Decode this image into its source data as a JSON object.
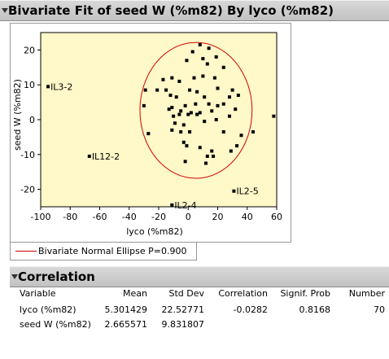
{
  "fit_report": {
    "title": "Bivariate Fit of seed W  (%m82) By lyco (%m82)"
  },
  "chart_data": {
    "type": "scatter",
    "xlabel": "lyco (%m82)",
    "ylabel": "seed W  (%m82)",
    "xlim": [
      -100,
      60
    ],
    "ylim": [
      -25,
      25
    ],
    "xticks": [
      -100,
      -80,
      -60,
      -40,
      -20,
      0,
      20,
      40,
      60
    ],
    "yticks": [
      -20,
      -10,
      0,
      10,
      20
    ],
    "grid": false,
    "background_color": "#fff8c8",
    "point_color": "#000000",
    "ellipse": {
      "center": [
        5.3,
        2.67
      ],
      "rx": 38,
      "ry": 19.5,
      "color": "#d40000"
    },
    "points": [
      [
        -95,
        9.5
      ],
      [
        -67,
        -10.5
      ],
      [
        -11,
        -24.5
      ],
      [
        31,
        -20.5
      ],
      [
        58,
        1
      ],
      [
        8,
        21.5
      ],
      [
        14,
        20.5
      ],
      [
        3,
        19.5
      ],
      [
        19,
        18
      ],
      [
        10,
        17.5
      ],
      [
        -1,
        17
      ],
      [
        13,
        16
      ],
      [
        24,
        15
      ],
      [
        -17,
        11.5
      ],
      [
        -11,
        12
      ],
      [
        -6,
        11
      ],
      [
        4,
        12
      ],
      [
        10,
        12.5
      ],
      [
        18,
        12
      ],
      [
        -29,
        8.5
      ],
      [
        -21,
        8.5
      ],
      [
        -15,
        8.5
      ],
      [
        1,
        8.5
      ],
      [
        6,
        8
      ],
      [
        20,
        9
      ],
      [
        30,
        8.5
      ],
      [
        -12,
        7
      ],
      [
        -8,
        6.5
      ],
      [
        11,
        6.5
      ],
      [
        28,
        6.5
      ],
      [
        34,
        7
      ],
      [
        -30,
        4
      ],
      [
        -2,
        4
      ],
      [
        5,
        4.5
      ],
      [
        14,
        4.5
      ],
      [
        20,
        4
      ],
      [
        24,
        4.5
      ],
      [
        -13,
        3
      ],
      [
        -11,
        3.5
      ],
      [
        -5,
        2.5
      ],
      [
        2,
        2
      ],
      [
        8,
        2
      ],
      [
        16,
        2.5
      ],
      [
        32,
        3
      ],
      [
        -10,
        1
      ],
      [
        -6,
        1.5
      ],
      [
        0,
        1.5
      ],
      [
        6,
        1.5
      ],
      [
        28,
        1
      ],
      [
        -9,
        -1
      ],
      [
        -3,
        -1.5
      ],
      [
        11,
        -0.5
      ],
      [
        19,
        0
      ],
      [
        -11,
        -3
      ],
      [
        -5,
        -3.5
      ],
      [
        1,
        -3.5
      ],
      [
        -27,
        -4
      ],
      [
        24,
        -3.5
      ],
      [
        44,
        -3.5
      ],
      [
        36,
        -4.5
      ],
      [
        -3,
        -6.5
      ],
      [
        -1,
        -7.5
      ],
      [
        33,
        -7.5
      ],
      [
        8,
        -8
      ],
      [
        16,
        -9
      ],
      [
        29,
        -9
      ],
      [
        13,
        -10.5
      ],
      [
        17,
        -10.5
      ],
      [
        -2,
        -12
      ],
      [
        12,
        -12.5
      ]
    ],
    "point_labels": [
      {
        "text": "IL3-2",
        "x": -95,
        "y": 9.5
      },
      {
        "text": "IL12-2",
        "x": -67,
        "y": -10.5
      },
      {
        "text": "IL2-4",
        "x": -11,
        "y": -24.5
      },
      {
        "text": "IL2-5",
        "x": 31,
        "y": -20.5
      }
    ]
  },
  "legend": {
    "label": "Bivariate Normal Ellipse P=0.900",
    "color": "#d40000"
  },
  "correlation_report": {
    "title": "Correlation",
    "headers": [
      "Variable",
      "Mean",
      "Std Dev",
      "Correlation",
      "Signif. Prob",
      "Number"
    ],
    "rows": [
      [
        "lyco (%m82)",
        "5.301429",
        "22.52771",
        "-0.0282",
        "0.8168",
        "70"
      ],
      [
        "seed W  (%m82)",
        "2.665571",
        "9.831807",
        "",
        "",
        ""
      ]
    ]
  }
}
